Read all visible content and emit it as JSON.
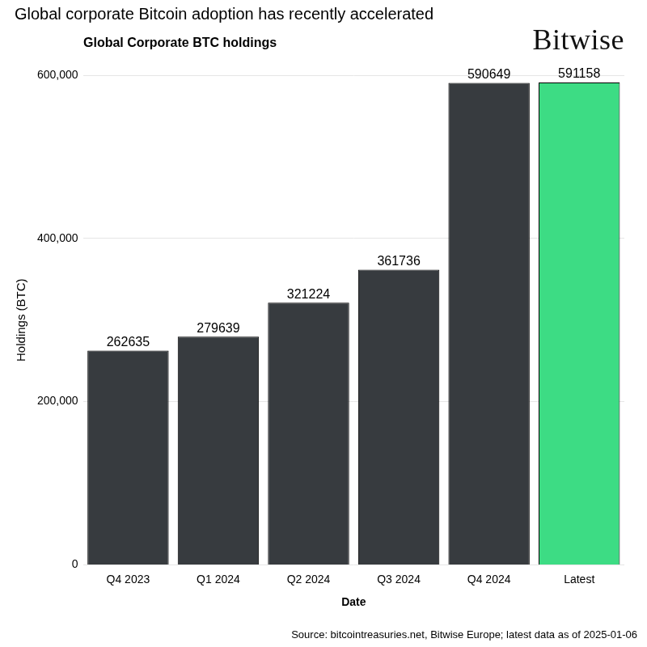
{
  "chart_data": {
    "type": "bar",
    "title": "Global corporate Bitcoin adoption has recently accelerated",
    "subtitle": "Global Corporate BTC holdings",
    "logo": "Bitwise",
    "source": "Source: bitcointreasuries.net, Bitwise Europe; latest data as of 2025-01-06",
    "x_label": "Date",
    "y_label": "Holdings (BTC)",
    "categories": [
      "Q4 2023",
      "Q1 2024",
      "Q2 2024",
      "Q3 2024",
      "Q4 2024",
      "Latest"
    ],
    "values": [
      262635,
      279639,
      321224,
      361736,
      590649,
      591158
    ],
    "colors": [
      "#373b3f",
      "#373b3f",
      "#373b3f",
      "#373b3f",
      "#373b3f",
      "#3ddc84"
    ],
    "ylim": [
      0,
      600000
    ],
    "yticks": [
      0,
      {
        "value": 200000,
        "label": "200,000"
      },
      {
        "value": 400000,
        "label": "400,000"
      },
      {
        "value": 600000,
        "label": "600,000"
      }
    ],
    "grid": true,
    "data_labels": true
  }
}
